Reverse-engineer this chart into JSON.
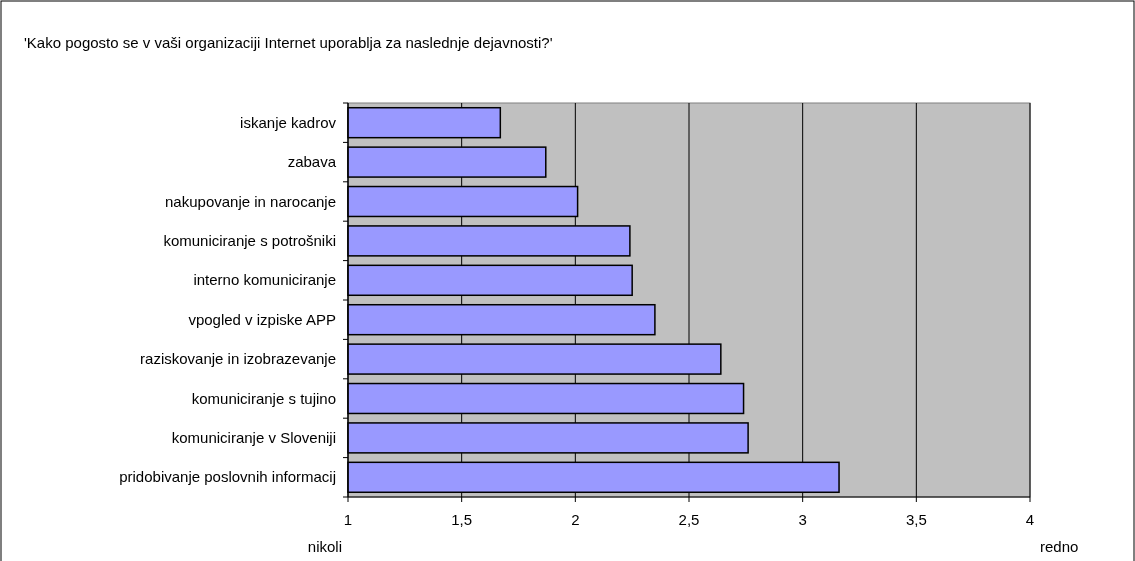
{
  "chart_data": {
    "type": "bar",
    "orientation": "horizontal",
    "title": "'Kako pogosto se v vaši organizaciji Internet uporablja za naslednje dejavnosti?'",
    "categories": [
      "iskanje kadrov",
      "zabava",
      "nakupovanje in narocanje",
      "komuniciranje s potrošniki",
      "interno komuniciranje",
      "vpogled v izpiske APP",
      "raziskovanje in izobrazevanje",
      "komuniciranje s tujino",
      "komuniciranje v Sloveniji",
      "pridobivanje poslovnih informacij"
    ],
    "values": [
      1.67,
      1.87,
      2.01,
      2.24,
      2.25,
      2.35,
      2.64,
      2.74,
      2.76,
      3.16
    ],
    "color": "#9999ff",
    "xlim": [
      1,
      4
    ],
    "xticks": [
      1,
      {
        "value": 1.5,
        "label": "1,5"
      },
      2,
      {
        "value": 2.5,
        "label": "2,5"
      },
      3,
      {
        "value": 3.5,
        "label": "3,5"
      },
      4
    ],
    "grid": "x",
    "annotations": [
      "nikoli",
      "redno"
    ]
  }
}
